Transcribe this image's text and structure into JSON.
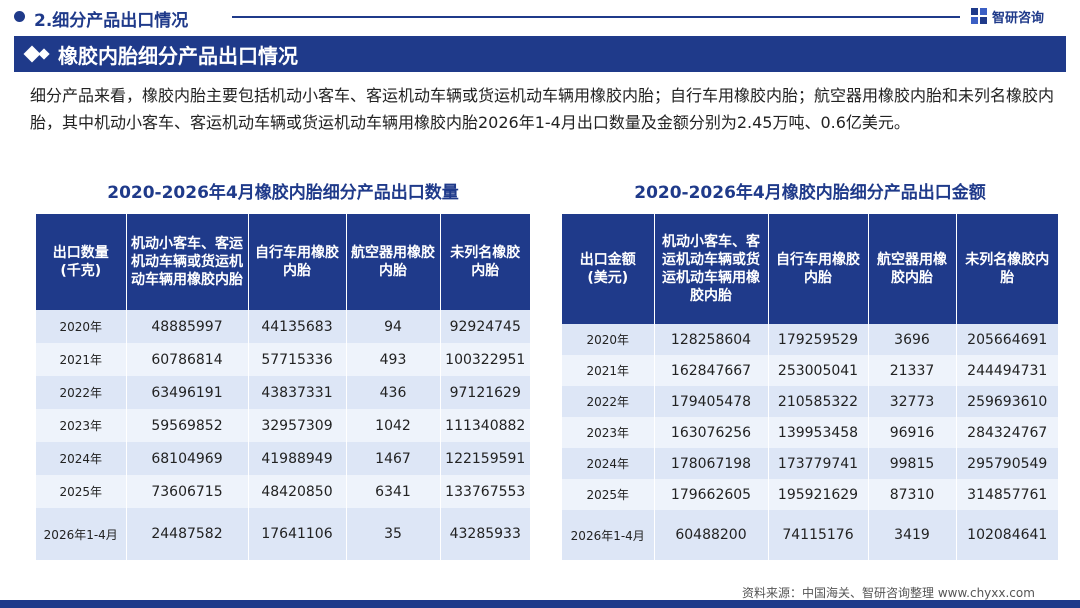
{
  "header": {
    "section": "2.细分产品出口情况",
    "brand": "智研咨询",
    "brand_icon": "chyxx-logo-icon"
  },
  "banner": {
    "title": "橡胶内胎细分产品出口情况"
  },
  "summary": "细分产品来看，橡胶内胎主要包括机动小客车、客运机动车辆或货运机动车辆用橡胶内胎；自行车用橡胶内胎；航空器用橡胶内胎和未列名橡胶内胎，其中机动小客车、客运机动车辆或货运机动车辆用橡胶内胎2026年1-4月出口数量及金额分别为2.45万吨、0.6亿美元。",
  "colors": {
    "primary": "#1f3a8a",
    "row_a": "#dde6f6",
    "row_b": "#eef3fb"
  },
  "quantity_table": {
    "title": "2020-2026年4月橡胶内胎细分产品出口数量",
    "headers": [
      "出口数量\n(千克)",
      "机动小客车、客运机动车辆或货运机动车辆用橡胶内胎",
      "自行车用橡胶内胎",
      "航空器用橡胶内胎",
      "未列名橡胶内胎"
    ],
    "rows": [
      [
        "2020年",
        "48885997",
        "44135683",
        "94",
        "92924745"
      ],
      [
        "2021年",
        "60786814",
        "57715336",
        "493",
        "100322951"
      ],
      [
        "2022年",
        "63496191",
        "43837331",
        "436",
        "97121629"
      ],
      [
        "2023年",
        "59569852",
        "32957309",
        "1042",
        "111340882"
      ],
      [
        "2024年",
        "68104969",
        "41988949",
        "1467",
        "122159591"
      ],
      [
        "2025年",
        "73606715",
        "48420850",
        "6341",
        "133767553"
      ],
      [
        "2026年1-4月",
        "24487582",
        "17641106",
        "35",
        "43285933"
      ]
    ]
  },
  "amount_table": {
    "title": "2020-2026年4月橡胶内胎细分产品出口金额",
    "headers": [
      "出口金额\n(美元)",
      "机动小客车、客运机动车辆或货运机动车辆用橡胶内胎",
      "自行车用橡胶内胎",
      "航空器用橡胶内胎",
      "未列名橡胶内胎"
    ],
    "rows": [
      [
        "2020年",
        "128258604",
        "179259529",
        "3696",
        "205664691"
      ],
      [
        "2021年",
        "162847667",
        "253005041",
        "21337",
        "244494731"
      ],
      [
        "2022年",
        "179405478",
        "210585322",
        "32773",
        "259693610"
      ],
      [
        "2023年",
        "163076256",
        "139953458",
        "96916",
        "284324767"
      ],
      [
        "2024年",
        "178067198",
        "173779741",
        "99815",
        "295790549"
      ],
      [
        "2025年",
        "179662605",
        "195921629",
        "87310",
        "314857761"
      ],
      [
        "2026年1-4月",
        "60488200",
        "74115176",
        "3419",
        "102084641"
      ]
    ]
  },
  "footer": {
    "source": "资料来源：中国海关、智研咨询整理    www.chyxx.com"
  }
}
